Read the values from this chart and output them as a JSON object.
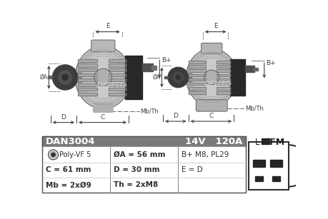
{
  "bg_color": "#f5f5f5",
  "white": "#ffffff",
  "black": "#000000",
  "gray_header": "#7a7a7a",
  "gray_body": "#b8b8b8",
  "gray_mid": "#989898",
  "gray_dark": "#585858",
  "gray_light": "#d0d0d0",
  "gray_very_light": "#e8e8e8",
  "part_number": "DAN3004",
  "voltage": "14V",
  "amperage": "120A",
  "spec_col1": [
    "Poly-VF 5",
    "C = 61 mm",
    "Mb = 2xØ9"
  ],
  "spec_col2": [
    "ØA = 56 mm",
    "D = 30 mm",
    "Th = 2xM8"
  ],
  "spec_col3": [
    "B+ M8, PL29",
    "E = D",
    ""
  ],
  "connector_labels": [
    "L",
    "DFM"
  ],
  "dim_color": "#404040",
  "line_color": "#505050"
}
